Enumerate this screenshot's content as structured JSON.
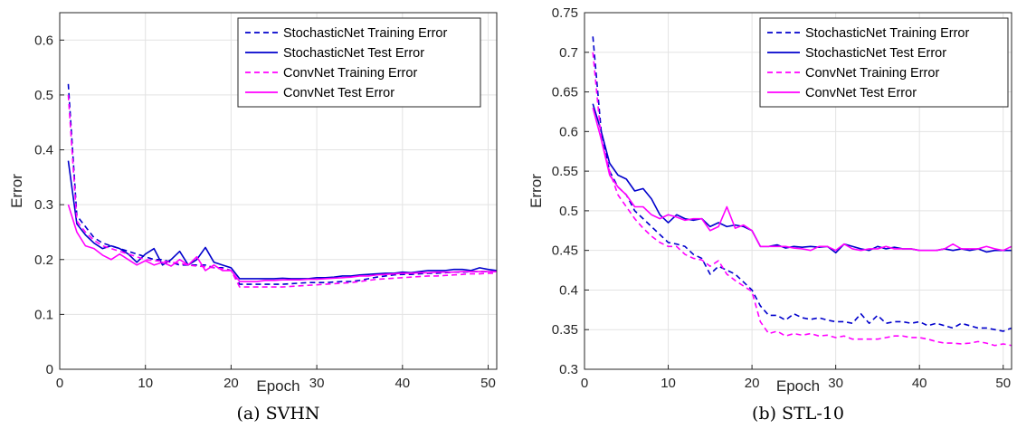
{
  "chart_data": [
    {
      "type": "line",
      "caption": "(a) SVHN",
      "xlabel": "Epoch",
      "ylabel": "Error",
      "xlim": [
        0,
        51
      ],
      "ylim": [
        0,
        0.65
      ],
      "xticks": [
        0,
        10,
        20,
        30,
        40,
        50
      ],
      "yticks": [
        0,
        0.1,
        0.2,
        0.3,
        0.4,
        0.5,
        0.6
      ],
      "ytick_labels": [
        "0",
        "0.1",
        "0.2",
        "0.3",
        "0.4",
        "0.5",
        "0.6"
      ],
      "grid": true,
      "legend_position": "top-right",
      "series": [
        {
          "name": "StochasticNet Training Error",
          "color": "#0000cc",
          "dash": true,
          "values": [
            0.52,
            0.28,
            0.26,
            0.24,
            0.23,
            0.225,
            0.22,
            0.215,
            0.21,
            0.205,
            0.2,
            0.2,
            0.195,
            0.19,
            0.19,
            0.19,
            0.19,
            0.185,
            0.185,
            0.18,
            0.155,
            0.155,
            0.155,
            0.155,
            0.155,
            0.155,
            0.156,
            0.157,
            0.158,
            0.158,
            0.158,
            0.159,
            0.16,
            0.16,
            0.162,
            0.165,
            0.168,
            0.17,
            0.172,
            0.173,
            0.173,
            0.174,
            0.175,
            0.175,
            0.176,
            0.177,
            0.177,
            0.178,
            0.178,
            0.178,
            0.178
          ]
        },
        {
          "name": "StochasticNet Test Error",
          "color": "#0000cc",
          "dash": false,
          "values": [
            0.38,
            0.265,
            0.245,
            0.23,
            0.22,
            0.225,
            0.22,
            0.21,
            0.195,
            0.21,
            0.22,
            0.19,
            0.2,
            0.215,
            0.19,
            0.2,
            0.222,
            0.195,
            0.19,
            0.185,
            0.165,
            0.165,
            0.165,
            0.165,
            0.165,
            0.166,
            0.165,
            0.165,
            0.165,
            0.167,
            0.167,
            0.168,
            0.17,
            0.17,
            0.172,
            0.173,
            0.174,
            0.175,
            0.175,
            0.177,
            0.176,
            0.178,
            0.18,
            0.18,
            0.18,
            0.182,
            0.182,
            0.18,
            0.185,
            0.182,
            0.18
          ]
        },
        {
          "name": "ConvNet Training Error",
          "color": "#ff00ff",
          "dash": true,
          "values": [
            0.5,
            0.27,
            0.25,
            0.235,
            0.225,
            0.22,
            0.215,
            0.21,
            0.205,
            0.2,
            0.198,
            0.197,
            0.195,
            0.193,
            0.19,
            0.188,
            0.187,
            0.185,
            0.183,
            0.18,
            0.15,
            0.15,
            0.15,
            0.15,
            0.15,
            0.15,
            0.151,
            0.152,
            0.153,
            0.154,
            0.155,
            0.156,
            0.157,
            0.158,
            0.16,
            0.162,
            0.164,
            0.165,
            0.166,
            0.167,
            0.168,
            0.169,
            0.17,
            0.17,
            0.171,
            0.172,
            0.173,
            0.174,
            0.174,
            0.175,
            0.175
          ]
        },
        {
          "name": "ConvNet Test Error",
          "color": "#ff00ff",
          "dash": false,
          "values": [
            0.3,
            0.25,
            0.225,
            0.22,
            0.208,
            0.2,
            0.21,
            0.2,
            0.19,
            0.198,
            0.19,
            0.195,
            0.188,
            0.2,
            0.19,
            0.205,
            0.18,
            0.19,
            0.18,
            0.18,
            0.16,
            0.16,
            0.16,
            0.162,
            0.162,
            0.163,
            0.163,
            0.163,
            0.164,
            0.164,
            0.165,
            0.166,
            0.167,
            0.168,
            0.17,
            0.17,
            0.172,
            0.173,
            0.174,
            0.175,
            0.175,
            0.176,
            0.176,
            0.177,
            0.177,
            0.177,
            0.178,
            0.178,
            0.178,
            0.178,
            0.178
          ]
        }
      ]
    },
    {
      "type": "line",
      "caption": "(b) STL-10",
      "xlabel": "Epoch",
      "ylabel": "Error",
      "xlim": [
        0,
        51
      ],
      "ylim": [
        0.3,
        0.75
      ],
      "xticks": [
        0,
        10,
        20,
        30,
        40,
        50
      ],
      "yticks": [
        0.3,
        0.35,
        0.4,
        0.45,
        0.5,
        0.55,
        0.6,
        0.65,
        0.7,
        0.75
      ],
      "ytick_labels": [
        "0.3",
        "0.35",
        "0.4",
        "0.45",
        "0.5",
        "0.55",
        "0.6",
        "0.65",
        "0.7",
        "0.75"
      ],
      "grid": true,
      "legend_position": "top-right",
      "series": [
        {
          "name": "StochasticNet Training Error",
          "color": "#0000cc",
          "dash": true,
          "values": [
            0.72,
            0.6,
            0.55,
            0.53,
            0.52,
            0.5,
            0.49,
            0.48,
            0.47,
            0.46,
            0.458,
            0.455,
            0.445,
            0.44,
            0.42,
            0.43,
            0.425,
            0.42,
            0.41,
            0.4,
            0.38,
            0.368,
            0.368,
            0.362,
            0.37,
            0.365,
            0.363,
            0.365,
            0.362,
            0.36,
            0.36,
            0.358,
            0.37,
            0.358,
            0.368,
            0.358,
            0.36,
            0.36,
            0.358,
            0.36,
            0.355,
            0.358,
            0.355,
            0.352,
            0.358,
            0.355,
            0.352,
            0.352,
            0.35,
            0.348,
            0.352
          ]
        },
        {
          "name": "StochasticNet Test Error",
          "color": "#0000cc",
          "dash": false,
          "values": [
            0.635,
            0.6,
            0.56,
            0.545,
            0.54,
            0.525,
            0.528,
            0.515,
            0.495,
            0.485,
            0.495,
            0.49,
            0.488,
            0.49,
            0.48,
            0.485,
            0.48,
            0.482,
            0.48,
            0.475,
            0.455,
            0.455,
            0.457,
            0.453,
            0.455,
            0.454,
            0.455,
            0.454,
            0.455,
            0.447,
            0.458,
            0.455,
            0.452,
            0.45,
            0.455,
            0.452,
            0.454,
            0.452,
            0.452,
            0.45,
            0.45,
            0.45,
            0.452,
            0.45,
            0.452,
            0.45,
            0.452,
            0.448,
            0.45,
            0.45,
            0.45
          ]
        },
        {
          "name": "ConvNet Training Error",
          "color": "#ff00ff",
          "dash": true,
          "values": [
            0.7,
            0.59,
            0.55,
            0.52,
            0.505,
            0.49,
            0.478,
            0.468,
            0.46,
            0.455,
            0.455,
            0.445,
            0.44,
            0.438,
            0.43,
            0.437,
            0.42,
            0.412,
            0.405,
            0.398,
            0.36,
            0.345,
            0.348,
            0.342,
            0.345,
            0.343,
            0.345,
            0.342,
            0.343,
            0.34,
            0.342,
            0.338,
            0.338,
            0.338,
            0.338,
            0.34,
            0.342,
            0.342,
            0.34,
            0.34,
            0.338,
            0.335,
            0.333,
            0.333,
            0.332,
            0.333,
            0.335,
            0.333,
            0.33,
            0.332,
            0.33
          ]
        },
        {
          "name": "ConvNet Test Error",
          "color": "#ff00ff",
          "dash": false,
          "values": [
            0.63,
            0.59,
            0.545,
            0.53,
            0.52,
            0.505,
            0.505,
            0.495,
            0.49,
            0.495,
            0.492,
            0.488,
            0.49,
            0.49,
            0.475,
            0.48,
            0.505,
            0.478,
            0.482,
            0.475,
            0.455,
            0.455,
            0.455,
            0.455,
            0.453,
            0.452,
            0.45,
            0.455,
            0.455,
            0.45,
            0.458,
            0.452,
            0.45,
            0.452,
            0.452,
            0.455,
            0.452,
            0.452,
            0.452,
            0.45,
            0.45,
            0.45,
            0.452,
            0.458,
            0.452,
            0.452,
            0.452,
            0.455,
            0.452,
            0.45,
            0.455
          ]
        }
      ]
    }
  ]
}
